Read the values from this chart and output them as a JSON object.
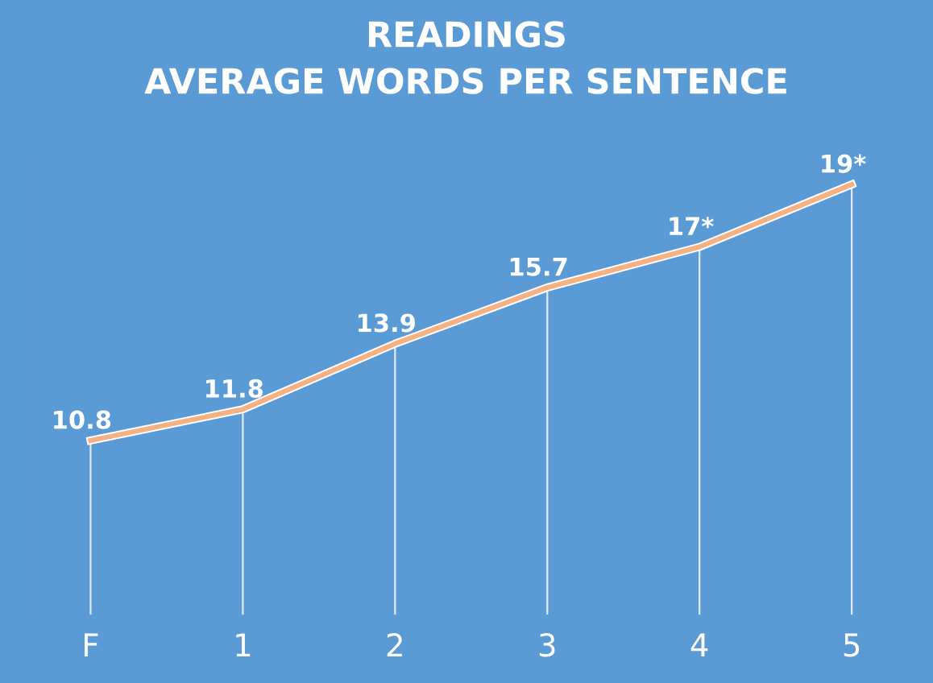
{
  "chart_data": {
    "type": "line",
    "title": "READINGS\nAVERAGE WORDS PER SENTENCE",
    "categories": [
      "F",
      "1",
      "2",
      "3",
      "4",
      "5"
    ],
    "series": [
      {
        "color": "#f4b183",
        "values": [
          10.8,
          11.8,
          13.9,
          15.7,
          17,
          19
        ],
        "value_labels": [
          "10.8",
          "11.8",
          "13.9",
          "15.7",
          "17*",
          "19*"
        ]
      }
    ],
    "grid": "x",
    "marker": "none",
    "line_style": "solid",
    "tick_labels": "x"
  }
}
